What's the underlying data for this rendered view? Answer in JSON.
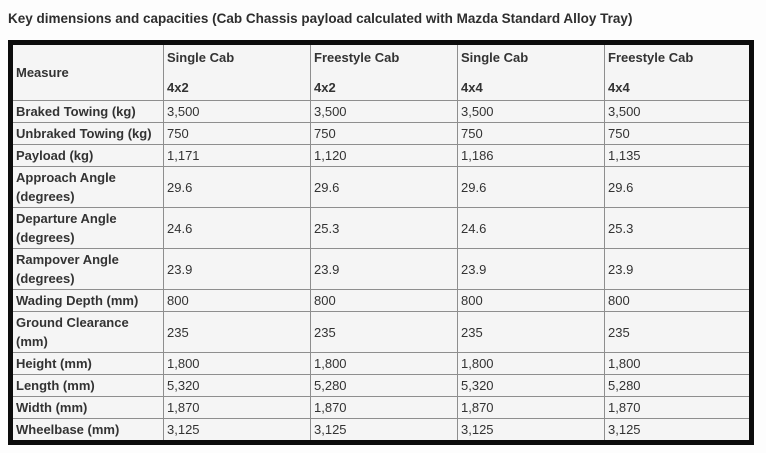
{
  "title": "Key dimensions and capacities (Cab Chassis payload calculated with Mazda Standard Alloy Tray)",
  "table": {
    "measure_header": "Measure",
    "columns": [
      {
        "line1": "Single Cab",
        "line2": "4x2"
      },
      {
        "line1": "Freestyle Cab",
        "line2": "4x2"
      },
      {
        "line1": "Single Cab",
        "line2": "4x4"
      },
      {
        "line1": "Freestyle Cab",
        "line2": "4x4"
      }
    ],
    "rows": [
      {
        "measure": "Braked Towing (kg)",
        "values": [
          "3,500",
          "3,500",
          "3,500",
          "3,500"
        ]
      },
      {
        "measure": "Unbraked Towing (kg)",
        "values": [
          "750",
          "750",
          "750",
          "750"
        ]
      },
      {
        "measure": "Payload (kg)",
        "values": [
          "1,171",
          "1,120",
          "1,186",
          "1,135"
        ]
      },
      {
        "measure": "Approach Angle (degrees)",
        "values": [
          "29.6",
          "29.6",
          "29.6",
          "29.6"
        ]
      },
      {
        "measure": "Departure Angle (degrees)",
        "values": [
          "24.6",
          "25.3",
          "24.6",
          "25.3"
        ]
      },
      {
        "measure": "Rampover Angle (degrees)",
        "values": [
          "23.9",
          "23.9",
          "23.9",
          "23.9"
        ]
      },
      {
        "measure": "Wading Depth (mm)",
        "values": [
          "800",
          "800",
          "800",
          "800"
        ]
      },
      {
        "measure": "Ground Clearance (mm)",
        "values": [
          "235",
          "235",
          "235",
          "235"
        ]
      },
      {
        "measure": "Height (mm)",
        "values": [
          "1,800",
          "1,800",
          "1,800",
          "1,800"
        ]
      },
      {
        "measure": "Length (mm)",
        "values": [
          "5,320",
          "5,280",
          "5,320",
          "5,280"
        ]
      },
      {
        "measure": "Width (mm)",
        "values": [
          "1,870",
          "1,870",
          "1,870",
          "1,870"
        ]
      },
      {
        "measure": "Wheelbase (mm)",
        "values": [
          "3,125",
          "3,125",
          "3,125",
          "3,125"
        ]
      }
    ]
  },
  "colors": {
    "page_bg": "#fdfdfd",
    "outer_border": "#0c0c0c",
    "cell_border": "#8e8e8e",
    "cell_bg": "#f5f5f5",
    "text": "#333333"
  }
}
